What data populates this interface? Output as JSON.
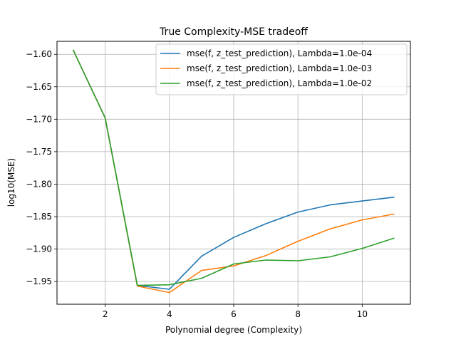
{
  "chart_data": {
    "type": "line",
    "title": "True Complexity-MSE tradeoff",
    "xlabel": "Polynomial degree (Complexity)",
    "ylabel": "log10(MSE)",
    "xlim": [
      0.5,
      11.5
    ],
    "ylim": [
      -1.985,
      -1.58
    ],
    "xticks": [
      2,
      4,
      6,
      8,
      10
    ],
    "xtick_labels": [
      "2",
      "4",
      "6",
      "8",
      "10"
    ],
    "yticks": [
      -1.6,
      -1.65,
      -1.7,
      -1.75,
      -1.8,
      -1.85,
      -1.9,
      -1.95
    ],
    "ytick_labels": [
      "−1.60",
      "−1.65",
      "−1.70",
      "−1.75",
      "−1.80",
      "−1.85",
      "−1.90",
      "−1.95"
    ],
    "grid": true,
    "legend_position": "top-right",
    "x": [
      1,
      2,
      3,
      4,
      5,
      6,
      7,
      8,
      9,
      10,
      11
    ],
    "series": [
      {
        "name": "mse(f, z_test_prediction), Lambda=1.0e-04",
        "color": "#1f77b4",
        "values": [
          -1.593,
          -1.698,
          -1.956,
          -1.962,
          -1.911,
          -1.882,
          -1.861,
          -1.843,
          -1.832,
          -1.826,
          -1.82
        ]
      },
      {
        "name": "mse(f, z_test_prediction), Lambda=1.0e-03",
        "color": "#ff7f0e",
        "values": [
          -1.593,
          -1.698,
          -1.957,
          -1.967,
          -1.933,
          -1.926,
          -1.91,
          -1.888,
          -1.869,
          -1.855,
          -1.846
        ]
      },
      {
        "name": "mse(f, z_test_prediction), Lambda=1.0e-02",
        "color": "#2ca02c",
        "values": [
          -1.593,
          -1.698,
          -1.956,
          -1.955,
          -1.945,
          -1.923,
          -1.917,
          -1.918,
          -1.912,
          -1.899,
          -1.883
        ]
      }
    ]
  }
}
